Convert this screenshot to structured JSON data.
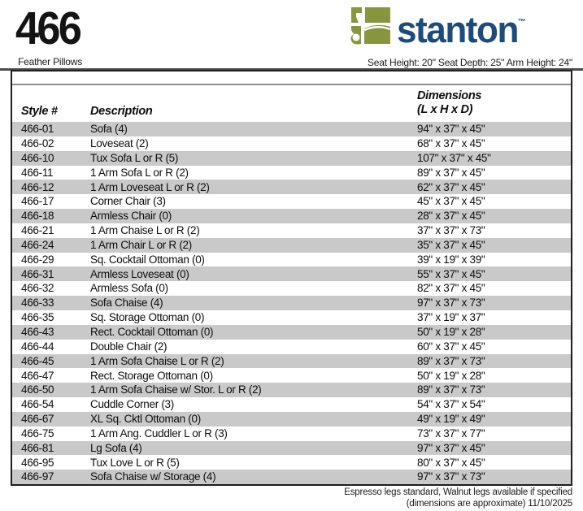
{
  "header": {
    "model_number": "466",
    "subtitle": "Feather Pillows",
    "spec_line": "Seat Height: 20\" Seat Depth: 25\" Arm Height: 24\"",
    "brand": "stanton",
    "trademark": "TM",
    "logo_icon": "sofa-blocks-icon",
    "logo_green": "#87953f",
    "brand_blue": "#1c4b7c"
  },
  "table": {
    "header": {
      "style": "Style #",
      "description": "Description",
      "dimensions_line1": "Dimensions",
      "dimensions_line2": "(L x H x D)"
    },
    "alt_row_color": "#c9c9c9",
    "rows": [
      {
        "style": "466-01",
        "description": "Sofa (4)",
        "dimensions": "94\" x 37\" x 45\""
      },
      {
        "style": "466-02",
        "description": "Loveseat (2)",
        "dimensions": "68\" x 37\" x 45\""
      },
      {
        "style": "466-10",
        "description": "Tux Sofa L or R (5)",
        "dimensions": "107\" x 37\" x 45\""
      },
      {
        "style": "466-11",
        "description": "1 Arm Sofa L or R (2)",
        "dimensions": "89\" x 37\" x 45\""
      },
      {
        "style": "466-12",
        "description": "1 Arm Loveseat L or R (2)",
        "dimensions": "62\" x 37\" x 45\""
      },
      {
        "style": "466-17",
        "description": "Corner Chair (3)",
        "dimensions": "45\" x 37\" x 45\""
      },
      {
        "style": "466-18",
        "description": "Armless Chair (0)",
        "dimensions": "28\" x 37\" x 45\""
      },
      {
        "style": "466-21",
        "description": "1 Arm Chaise L or R (2)",
        "dimensions": "37\" x 37\" x 73\""
      },
      {
        "style": "466-24",
        "description": "1 Arm Chair L or R (2)",
        "dimensions": "35\" x 37\" x 45\""
      },
      {
        "style": "466-29",
        "description": "Sq. Cocktail Ottoman (0)",
        "dimensions": "39\" x 19\" x 39\""
      },
      {
        "style": "466-31",
        "description": "Armless Loveseat (0)",
        "dimensions": "55\" x 37\" x 45\""
      },
      {
        "style": "466-32",
        "description": "Armless Sofa (0)",
        "dimensions": "82\" x 37\" x 45\""
      },
      {
        "style": "466-33",
        "description": "Sofa Chaise (4)",
        "dimensions": "97\" x 37\" x 73\""
      },
      {
        "style": "466-35",
        "description": "Sq. Storage Ottoman (0)",
        "dimensions": "37\" x 19\" x 37\""
      },
      {
        "style": "466-43",
        "description": "Rect. Cocktail Ottoman (0)",
        "dimensions": "50\" x 19\" x 28\""
      },
      {
        "style": "466-44",
        "description": "Double Chair (2)",
        "dimensions": "60\" x 37\" x 45\""
      },
      {
        "style": "466-45",
        "description": "1 Arm Sofa Chaise L or R (2)",
        "dimensions": "89\" x 37\" x 73\""
      },
      {
        "style": "466-47",
        "description": "Rect. Storage Ottoman (0)",
        "dimensions": "50\" x 19\" x 28\""
      },
      {
        "style": "466-50",
        "description": "1 Arm Sofa Chaise w/ Stor. L or R (2)",
        "dimensions": "89\" x 37\" x 73\""
      },
      {
        "style": "466-54",
        "description": "Cuddle Corner (3)",
        "dimensions": "54\" x 37\" x 54\""
      },
      {
        "style": "466-67",
        "description": "XL Sq. Cktl Ottoman (0)",
        "dimensions": "49\" x 19\" x 49\""
      },
      {
        "style": "466-75",
        "description": "1 Arm Ang. Cuddler L or R (3)",
        "dimensions": "73\" x 37\" x 77\""
      },
      {
        "style": "466-81",
        "description": "Lg Sofa (4)",
        "dimensions": "97\" x 37\" x 45\""
      },
      {
        "style": "466-95",
        "description": "Tux Love L or R (5)",
        "dimensions": "80\" x 37\" x 45\""
      },
      {
        "style": "466-97",
        "description": "Sofa Chaise w/ Storage (4)",
        "dimensions": "97\" x 37\" x 73\""
      }
    ]
  },
  "footer": {
    "line1": "Espresso legs standard, Walnut legs available if specified",
    "line2": "(dimensions are approximate) 11/10/2025"
  }
}
